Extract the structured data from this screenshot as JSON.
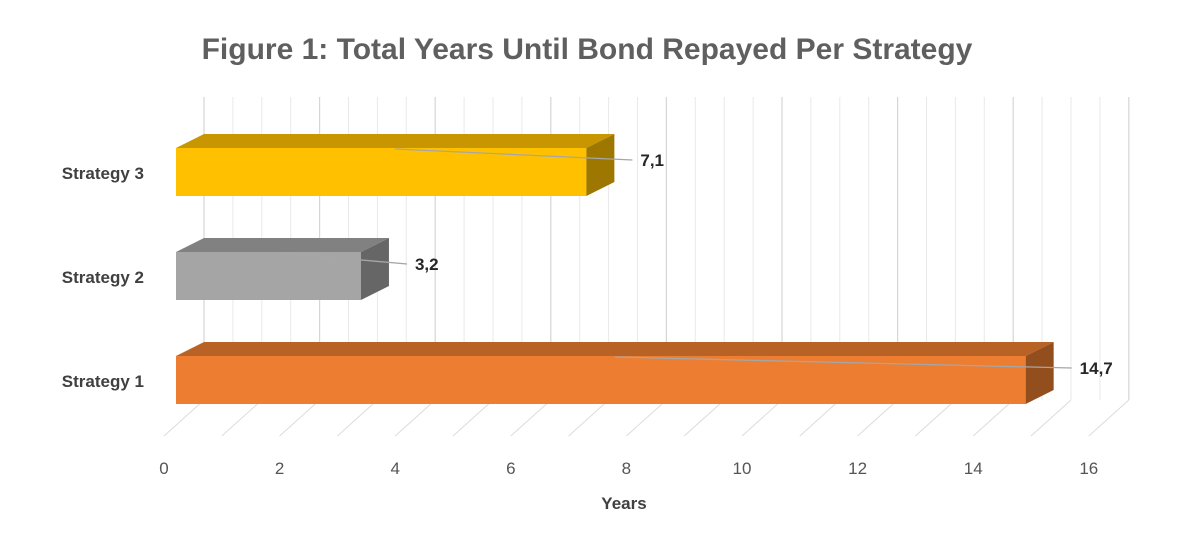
{
  "chart_data": {
    "type": "bar",
    "orientation": "horizontal",
    "style": "3d",
    "title": "Figure 1: Total Years Until Bond Repayed Per Strategy",
    "xlabel": "Years",
    "ylabel": "",
    "categories": [
      "Strategy 1",
      "Strategy 2",
      "Strategy 3"
    ],
    "values": [
      14.7,
      3.2,
      7.1
    ],
    "data_labels": [
      "14,7",
      "3,2",
      "7,1"
    ],
    "colors": [
      "#ed7d31",
      "#a5a5a5",
      "#ffc000"
    ],
    "xlim": [
      0,
      16
    ],
    "xticks": [
      0,
      2,
      4,
      6,
      8,
      10,
      12,
      14,
      16
    ],
    "grid": true,
    "legend": "none"
  }
}
